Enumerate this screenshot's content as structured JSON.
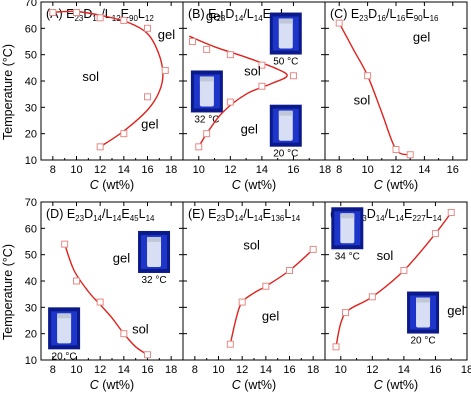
{
  "figure": {
    "ylabel": "Temperature (°C)",
    "xlabel_italic": "C",
    "xlabel_unit": " (wt%)"
  },
  "chart_data": [
    {
      "type": "scatter",
      "panel": "(A)",
      "title_parts": [
        [
          "E",
          "n"
        ],
        [
          "23",
          "s"
        ],
        [
          "D",
          "n"
        ],
        [
          "12",
          "s"
        ],
        [
          "/L",
          "n"
        ],
        [
          "12",
          "s"
        ],
        [
          "E",
          "n"
        ],
        [
          "90",
          "s"
        ],
        [
          "L",
          "n"
        ],
        [
          "12",
          "s"
        ]
      ],
      "xlim": [
        7,
        19
      ],
      "ylim": [
        10,
        70
      ],
      "xticks": [
        8,
        10,
        12,
        14,
        16,
        18
      ],
      "yticks": [
        10,
        20,
        30,
        40,
        50,
        60,
        70
      ],
      "series": [
        {
          "x": [
            8,
            10,
            12,
            14,
            16,
            17.5
          ],
          "y": [
            66,
            66,
            64,
            63,
            60,
            44
          ]
        },
        {
          "x": [
            12,
            14,
            16
          ],
          "y": [
            15,
            20,
            34
          ]
        }
      ],
      "curves": [
        [
          [
            7.8,
            66
          ],
          [
            10,
            66.4
          ],
          [
            12.5,
            64.5
          ],
          [
            14.5,
            62
          ],
          [
            16,
            58
          ],
          [
            16.9,
            51
          ],
          [
            17.3,
            43
          ],
          [
            17,
            36
          ],
          [
            16,
            29
          ],
          [
            14,
            21
          ],
          [
            12,
            15
          ]
        ]
      ],
      "labels": [
        {
          "text": "gel",
          "x": 17.6,
          "y": 56
        },
        {
          "text": "sol",
          "x": 11.2,
          "y": 40
        },
        {
          "text": "gel",
          "x": 16.2,
          "y": 22
        }
      ],
      "photos": []
    },
    {
      "type": "scatter",
      "panel": "(B)",
      "title_parts": [
        [
          "E",
          "n"
        ],
        [
          "23",
          "s"
        ],
        [
          "D",
          "n"
        ],
        [
          "14",
          "s"
        ],
        [
          "/L",
          "n"
        ],
        [
          "14",
          "s"
        ],
        [
          "E",
          "n"
        ],
        [
          "90",
          "s"
        ],
        [
          "L",
          "n"
        ],
        [
          "14",
          "s"
        ]
      ],
      "xlim": [
        9,
        18
      ],
      "ylim": [
        10,
        70
      ],
      "xticks": [
        10,
        12,
        14,
        16,
        18
      ],
      "yticks": [
        10,
        20,
        30,
        40,
        50,
        60,
        70
      ],
      "series": [
        {
          "x": [
            9.6,
            10.5,
            12,
            14,
            16
          ],
          "y": [
            55,
            52,
            50,
            46,
            42
          ]
        },
        {
          "x": [
            10,
            10.5,
            12,
            14
          ],
          "y": [
            15,
            20,
            32,
            38
          ]
        }
      ],
      "curves": [
        [
          [
            9.4,
            57
          ],
          [
            11,
            53
          ],
          [
            13,
            49
          ],
          [
            14.8,
            45
          ],
          [
            15.6,
            42
          ],
          [
            14.6,
            39
          ],
          [
            13,
            35
          ],
          [
            11.5,
            28
          ],
          [
            10.5,
            20
          ],
          [
            9.9,
            14
          ]
        ]
      ],
      "labels": [
        {
          "text": "gel",
          "x": 11,
          "y": 63
        },
        {
          "text": "sol",
          "x": 13.4,
          "y": 42
        },
        {
          "text": "gel",
          "x": 13.2,
          "y": 20
        }
      ],
      "photos": [
        {
          "label": "50 °C",
          "x": 14.5,
          "y": 66
        },
        {
          "label": "32 °C",
          "x": 9.5,
          "y": 44
        },
        {
          "label": "20 °C",
          "x": 14.5,
          "y": 31
        }
      ]
    },
    {
      "type": "scatter",
      "panel": "(C)",
      "title_parts": [
        [
          "E",
          "n"
        ],
        [
          "23",
          "s"
        ],
        [
          "D",
          "n"
        ],
        [
          "16",
          "s"
        ],
        [
          "/L",
          "n"
        ],
        [
          "16",
          "s"
        ],
        [
          "E",
          "n"
        ],
        [
          "90",
          "s"
        ],
        [
          "L",
          "n"
        ],
        [
          "16",
          "s"
        ]
      ],
      "xlim": [
        7,
        17
      ],
      "ylim": [
        10,
        70
      ],
      "xticks": [
        8,
        10,
        12,
        14,
        16
      ],
      "yticks": [
        10,
        20,
        30,
        40,
        50,
        60,
        70
      ],
      "series": [
        {
          "x": [
            8,
            10,
            12,
            13
          ],
          "y": [
            62,
            42,
            14,
            12
          ]
        }
      ],
      "curves": [
        [
          [
            8,
            62
          ],
          [
            9,
            52
          ],
          [
            10,
            42
          ],
          [
            11,
            28
          ],
          [
            12,
            14
          ],
          [
            13,
            12
          ]
        ]
      ],
      "labels": [
        {
          "text": "gel",
          "x": 13.8,
          "y": 55
        },
        {
          "text": "sol",
          "x": 9.6,
          "y": 31
        }
      ],
      "photos": []
    },
    {
      "type": "scatter",
      "panel": "(D)",
      "title_parts": [
        [
          "E",
          "n"
        ],
        [
          "23",
          "s"
        ],
        [
          "D",
          "n"
        ],
        [
          "14",
          "s"
        ],
        [
          "/L",
          "n"
        ],
        [
          "14",
          "s"
        ],
        [
          "E",
          "n"
        ],
        [
          "45",
          "s"
        ],
        [
          "L",
          "n"
        ],
        [
          "14",
          "s"
        ]
      ],
      "xlim": [
        7,
        19
      ],
      "ylim": [
        10,
        70
      ],
      "xticks": [
        8,
        10,
        12,
        14,
        16,
        18
      ],
      "yticks": [
        10,
        20,
        30,
        40,
        50,
        60,
        70
      ],
      "series": [
        {
          "x": [
            9,
            10,
            12,
            14,
            16
          ],
          "y": [
            54,
            40,
            32,
            20,
            12
          ]
        }
      ],
      "curves": [
        [
          [
            9,
            54
          ],
          [
            9.8,
            44
          ],
          [
            11,
            36
          ],
          [
            12,
            31
          ],
          [
            13,
            26
          ],
          [
            14,
            20
          ],
          [
            15,
            15
          ],
          [
            16,
            12
          ]
        ]
      ],
      "labels": [
        {
          "text": "gel",
          "x": 13.8,
          "y": 47
        },
        {
          "text": "sol",
          "x": 15.4,
          "y": 20
        }
      ],
      "photos": [
        {
          "label": "32 °C",
          "x": 15.2,
          "y": 59
        },
        {
          "label": "20 °C",
          "x": 7.6,
          "y": 30
        }
      ]
    },
    {
      "type": "scatter",
      "panel": "(E)",
      "title_parts": [
        [
          "E",
          "n"
        ],
        [
          "23",
          "s"
        ],
        [
          "D",
          "n"
        ],
        [
          "14",
          "s"
        ],
        [
          "/L",
          "n"
        ],
        [
          "14",
          "s"
        ],
        [
          "E",
          "n"
        ],
        [
          "136",
          "s"
        ],
        [
          "L",
          "n"
        ],
        [
          "14",
          "s"
        ]
      ],
      "xlim": [
        7,
        19
      ],
      "ylim": [
        10,
        70
      ],
      "xticks": [
        8,
        10,
        12,
        14,
        16,
        18
      ],
      "yticks": [
        10,
        20,
        30,
        40,
        50,
        60,
        70
      ],
      "series": [
        {
          "x": [
            11,
            12,
            14,
            16,
            18
          ],
          "y": [
            16,
            32,
            38,
            44,
            52
          ]
        }
      ],
      "curves": [
        [
          [
            11,
            16
          ],
          [
            11.5,
            26
          ],
          [
            12,
            32
          ],
          [
            13,
            35.5
          ],
          [
            14,
            38
          ],
          [
            16,
            44
          ],
          [
            18,
            52
          ]
        ]
      ],
      "labels": [
        {
          "text": "sol",
          "x": 12.8,
          "y": 52
        },
        {
          "text": "gel",
          "x": 14.4,
          "y": 25
        }
      ],
      "photos": []
    },
    {
      "type": "scatter",
      "panel": "(F)",
      "title_parts": [
        [
          "E",
          "n"
        ],
        [
          "23",
          "s"
        ],
        [
          "D",
          "n"
        ],
        [
          "14",
          "s"
        ],
        [
          "/L",
          "n"
        ],
        [
          "14",
          "s"
        ],
        [
          "E",
          "n"
        ],
        [
          "227",
          "s"
        ],
        [
          "L",
          "n"
        ],
        [
          "14",
          "s"
        ]
      ],
      "xlim": [
        9,
        18
      ],
      "ylim": [
        10,
        70
      ],
      "xticks": [
        10,
        12,
        14,
        16,
        18
      ],
      "yticks": [
        10,
        20,
        30,
        40,
        50,
        60,
        70
      ],
      "series": [
        {
          "x": [
            9.7,
            10.3,
            12,
            14,
            16,
            17
          ],
          "y": [
            15,
            28,
            34,
            44,
            58,
            66
          ]
        }
      ],
      "curves": [
        [
          [
            9.7,
            15
          ],
          [
            10,
            24
          ],
          [
            10.5,
            29
          ],
          [
            12,
            34
          ],
          [
            14,
            44
          ],
          [
            16,
            58
          ],
          [
            17,
            66
          ]
        ]
      ],
      "labels": [
        {
          "text": "sol",
          "x": 12.8,
          "y": 48
        },
        {
          "text": "gel",
          "x": 17.3,
          "y": 27
        }
      ],
      "photos": [
        {
          "label": "34 °C",
          "x": 9.4,
          "y": 68
        },
        {
          "label": "20 °C",
          "x": 14.2,
          "y": 36
        }
      ]
    }
  ]
}
